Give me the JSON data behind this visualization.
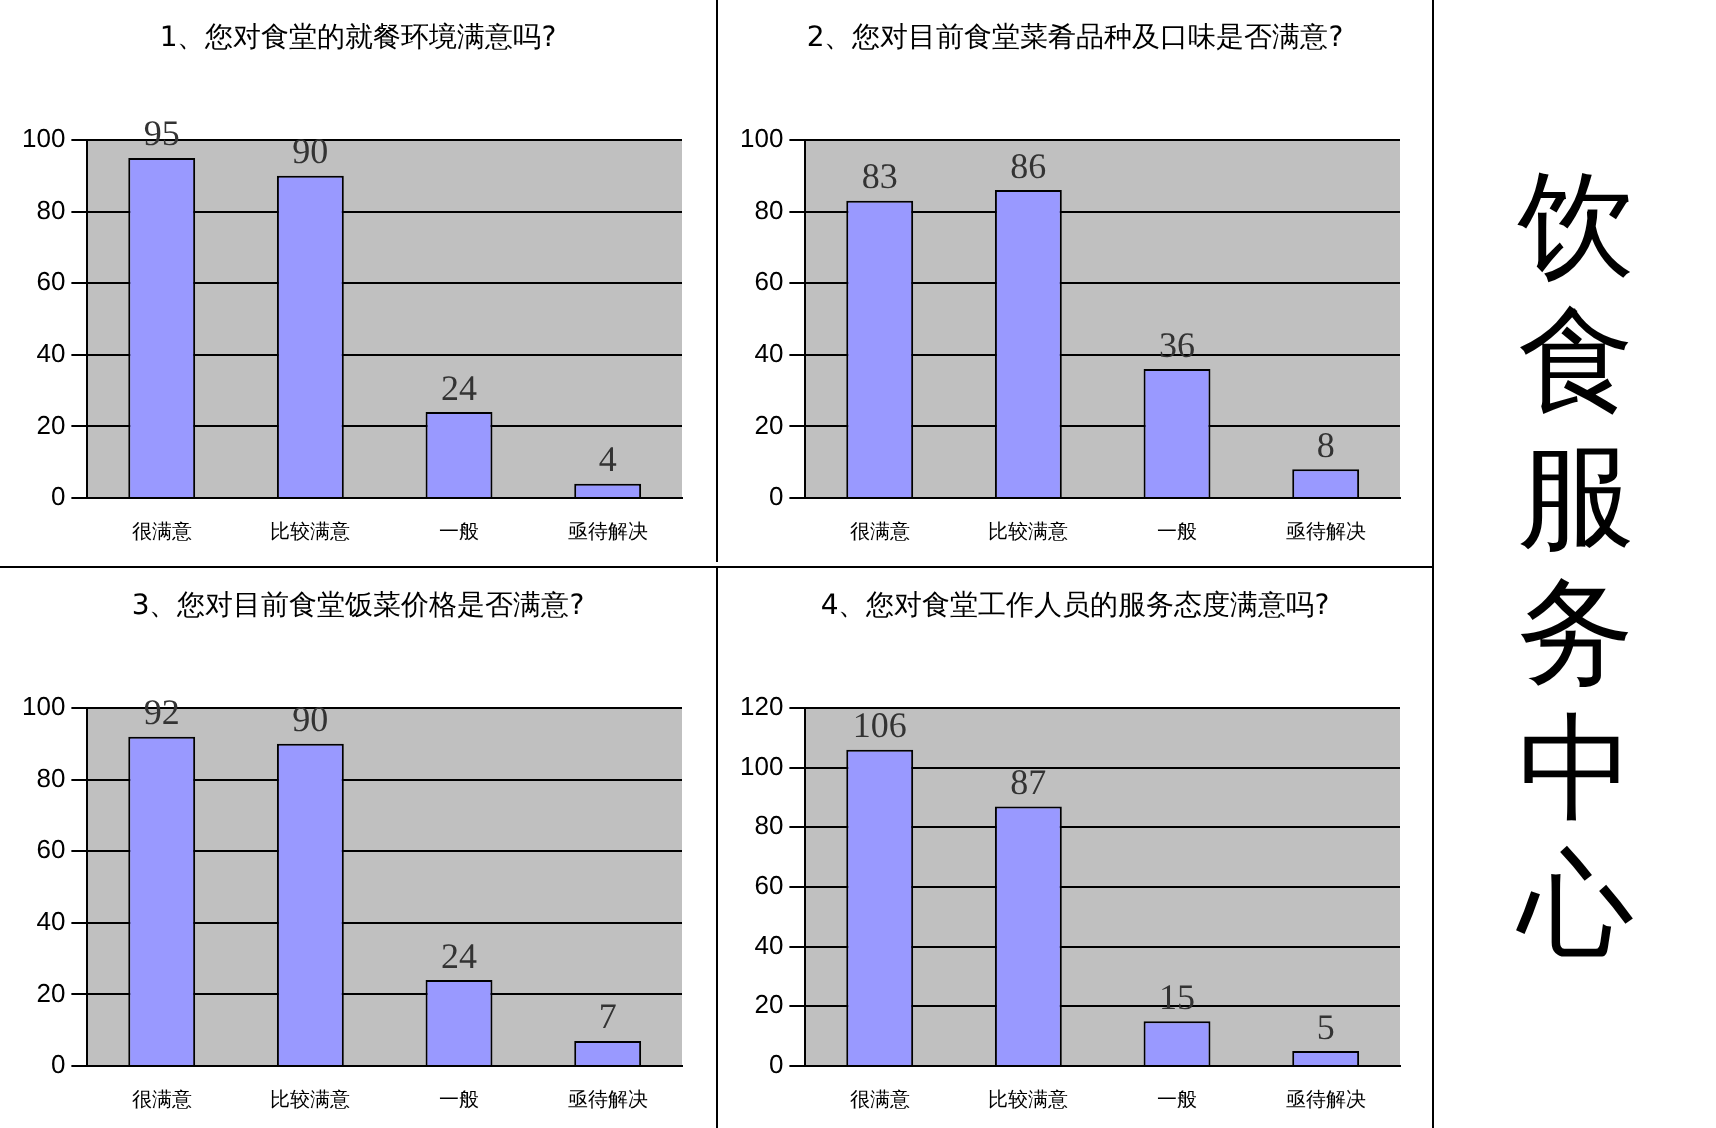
{
  "chart_data": [
    {
      "type": "bar",
      "title": "1、您对食堂的就餐环境满意吗?",
      "categories": [
        "很满意",
        "比较满意",
        "一般",
        "亟待解决"
      ],
      "values": [
        95,
        90,
        24,
        4
      ],
      "color": "#9999ff",
      "ylim": [
        0,
        100
      ],
      "yticks": [
        0,
        20,
        40,
        60,
        80,
        100
      ],
      "grid": "y",
      "data_labels": true
    },
    {
      "type": "bar",
      "title": "2、您对目前食堂菜肴品种及口味是否满意?",
      "categories": [
        "很满意",
        "比较满意",
        "一般",
        "亟待解决"
      ],
      "values": [
        83,
        86,
        36,
        8
      ],
      "color": "#9999ff",
      "ylim": [
        0,
        100
      ],
      "yticks": [
        0,
        20,
        40,
        60,
        80,
        100
      ],
      "grid": "y",
      "data_labels": true
    },
    {
      "type": "bar",
      "title": "3、您对目前食堂饭菜价格是否满意?",
      "categories": [
        "很满意",
        "比较满意",
        "一般",
        "亟待解决"
      ],
      "values": [
        92,
        90,
        24,
        7
      ],
      "color": "#9999ff",
      "ylim": [
        0,
        100
      ],
      "yticks": [
        0,
        20,
        40,
        60,
        80,
        100
      ],
      "grid": "y",
      "data_labels": true
    },
    {
      "type": "bar",
      "title": "4、您对食堂工作人员的服务态度满意吗?",
      "categories": [
        "很满意",
        "比较满意",
        "一般",
        "亟待解决"
      ],
      "values": [
        106,
        87,
        15,
        5
      ],
      "color": "#9999ff",
      "ylim": [
        0,
        120
      ],
      "yticks": [
        0,
        20,
        40,
        60,
        80,
        100,
        120
      ],
      "grid": "y",
      "data_labels": true
    },
    {
      "type": "other",
      "title": "饮食服务中心"
    }
  ]
}
